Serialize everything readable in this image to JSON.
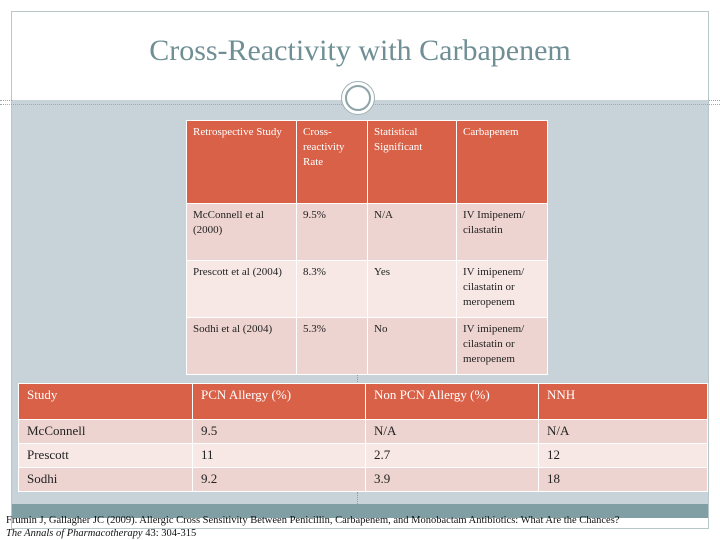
{
  "slide": {
    "title": "Cross-Reactivity with Carbapenem"
  },
  "table1": {
    "headers": [
      "Retrospective Study",
      "Cross-reactivity Rate",
      "Statistical Significant",
      "Carbapenem"
    ],
    "rows": [
      [
        "McConnell et al (2000)",
        "9.5%",
        "N/A",
        "IV Imipenem/ cilastatin"
      ],
      [
        "Prescott et al (2004)",
        "8.3%",
        "Yes",
        "IV imipenem/ cilastatin or meropenem"
      ],
      [
        "Sodhi et al (2004)",
        "5.3%",
        "No",
        "IV imipenem/ cilastatin or meropenem"
      ]
    ]
  },
  "table2": {
    "headers": [
      "Study",
      "PCN Allergy (%)",
      "Non PCN Allergy (%)",
      "NNH"
    ],
    "rows": [
      [
        "McConnell",
        "9.5",
        "N/A",
        "N/A"
      ],
      [
        "Prescott",
        "11",
        "2.7",
        "12"
      ],
      [
        "Sodhi",
        "9.2",
        "3.9",
        "18"
      ]
    ]
  },
  "citation": {
    "text": "Frumin J, Gallagher JC (2009). Allergic Cross Sensitivity Between Penicillin, Carbapenem, and Monobactam Antibiotics: What Are the Chances?",
    "journal": "The Annals of Pharmacotherapy",
    "volume": "43: 304-315"
  }
}
